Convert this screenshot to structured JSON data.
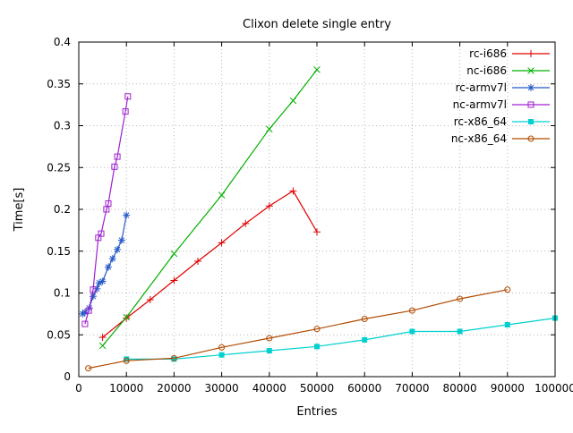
{
  "chart_data": {
    "type": "line",
    "title": "Clixon delete single entry",
    "xlabel": "Entries",
    "ylabel": "Time[s]",
    "xlim": [
      0,
      100000
    ],
    "ylim": [
      0,
      0.4
    ],
    "grid": true,
    "legend_position": "top-right-inside",
    "x_ticks": [
      {
        "v": 0,
        "label": "0"
      },
      {
        "v": 10000,
        "label": "10000"
      },
      {
        "v": 20000,
        "label": "20000"
      },
      {
        "v": 30000,
        "label": "30000"
      },
      {
        "v": 40000,
        "label": "40000"
      },
      {
        "v": 50000,
        "label": "50000"
      },
      {
        "v": 60000,
        "label": "60000"
      },
      {
        "v": 70000,
        "label": "70000"
      },
      {
        "v": 80000,
        "label": "80000"
      },
      {
        "v": 90000,
        "label": "90000"
      },
      {
        "v": 100000,
        "label": "100000"
      }
    ],
    "y_ticks": [
      {
        "v": 0,
        "label": "0"
      },
      {
        "v": 0.05,
        "label": "0.05"
      },
      {
        "v": 0.1,
        "label": "0.1"
      },
      {
        "v": 0.15,
        "label": "0.15"
      },
      {
        "v": 0.2,
        "label": "0.2"
      },
      {
        "v": 0.25,
        "label": "0.25"
      },
      {
        "v": 0.3,
        "label": "0.3"
      },
      {
        "v": 0.35,
        "label": "0.35"
      },
      {
        "v": 0.4,
        "label": "0.4"
      }
    ],
    "grid_color": "#b8b8b8",
    "axis_color": "#000000",
    "series": [
      {
        "name": "rc-i686",
        "color": "#e00000",
        "marker": "plus",
        "points": [
          [
            5000,
            0.047
          ],
          [
            10000,
            0.07
          ],
          [
            15000,
            0.092
          ],
          [
            20000,
            0.115
          ],
          [
            25000,
            0.138
          ],
          [
            30000,
            0.16
          ],
          [
            35000,
            0.183
          ],
          [
            40000,
            0.204
          ],
          [
            45000,
            0.222
          ],
          [
            50000,
            0.173
          ]
        ]
      },
      {
        "name": "nc-i686",
        "color": "#00b000",
        "marker": "cross",
        "points": [
          [
            5000,
            0.037
          ],
          [
            10000,
            0.071
          ],
          [
            20000,
            0.147
          ],
          [
            30000,
            0.217
          ],
          [
            40000,
            0.296
          ],
          [
            45000,
            0.33
          ],
          [
            50000,
            0.367
          ]
        ]
      },
      {
        "name": "rc-armv7l",
        "color": "#2458c8",
        "marker": "asterisk",
        "points": [
          [
            800,
            0.075
          ],
          [
            1300,
            0.077
          ],
          [
            2200,
            0.082
          ],
          [
            3000,
            0.096
          ],
          [
            3800,
            0.105
          ],
          [
            4300,
            0.112
          ],
          [
            5000,
            0.114
          ],
          [
            6200,
            0.131
          ],
          [
            7100,
            0.141
          ],
          [
            8100,
            0.152
          ],
          [
            9000,
            0.163
          ],
          [
            10000,
            0.193
          ]
        ]
      },
      {
        "name": "nc-armv7l",
        "color": "#a020d0",
        "marker": "square-open",
        "points": [
          [
            1300,
            0.063
          ],
          [
            2100,
            0.079
          ],
          [
            3000,
            0.104
          ],
          [
            4100,
            0.166
          ],
          [
            4700,
            0.171
          ],
          [
            5800,
            0.2
          ],
          [
            6200,
            0.207
          ],
          [
            7500,
            0.251
          ],
          [
            8100,
            0.263
          ],
          [
            9800,
            0.317
          ],
          [
            10300,
            0.335
          ]
        ]
      },
      {
        "name": "rc-x86_64",
        "color": "#00d0d0",
        "marker": "square-filled",
        "points": [
          [
            10000,
            0.021
          ],
          [
            20000,
            0.021
          ],
          [
            30000,
            0.026
          ],
          [
            40000,
            0.031
          ],
          [
            50000,
            0.036
          ],
          [
            60000,
            0.044
          ],
          [
            70000,
            0.054
          ],
          [
            80000,
            0.054
          ],
          [
            90000,
            0.062
          ],
          [
            100000,
            0.07
          ]
        ]
      },
      {
        "name": "nc-x86_64",
        "color": "#b04a00",
        "marker": "circle-open",
        "points": [
          [
            2000,
            0.01
          ],
          [
            10000,
            0.019
          ],
          [
            20000,
            0.022
          ],
          [
            30000,
            0.035
          ],
          [
            40000,
            0.046
          ],
          [
            50000,
            0.057
          ],
          [
            60000,
            0.069
          ],
          [
            70000,
            0.079
          ],
          [
            80000,
            0.093
          ],
          [
            90000,
            0.104
          ]
        ]
      }
    ]
  }
}
